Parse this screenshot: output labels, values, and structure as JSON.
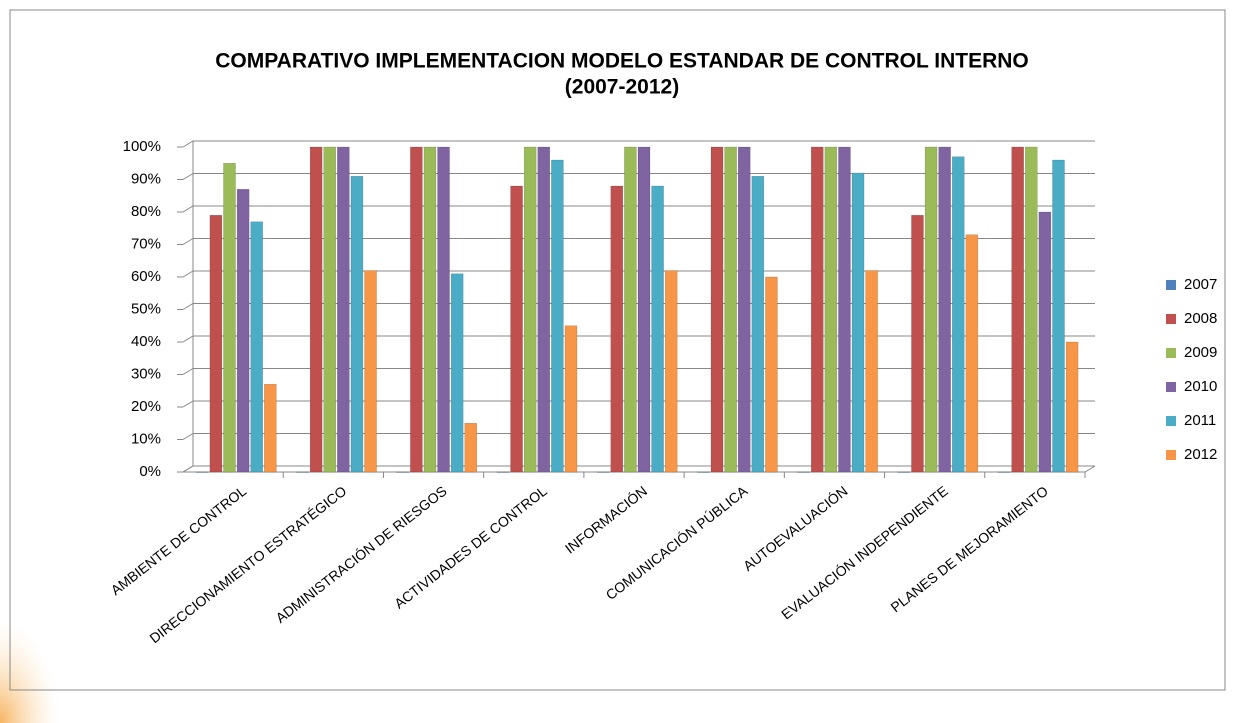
{
  "chart_data": {
    "type": "bar",
    "title": "COMPARATIVO  IMPLEMENTACION MODELO ESTANDAR  DE CONTROL INTERNO",
    "subtitle": "(2007-2012)",
    "categories": [
      "AMBIENTE DE CONTROL",
      "DIRECCIONAMIENTO ESTRATÉGICO",
      "ADMINISTRACIÓN DE RIESGOS",
      "ACTIVIDADES DE CONTROL",
      "INFORMACIÓN",
      "COMUNICACIÓN PÚBLICA",
      "AUTOEVALUACIÓN",
      "EVALUACIÓN INDEPENDIENTE",
      "PLANES DE MEJORAMIENTO"
    ],
    "series": [
      {
        "name": "2007",
        "color": "#4f81bd",
        "values": [
          0,
          0,
          0,
          0,
          0,
          0,
          0,
          0,
          0
        ]
      },
      {
        "name": "2008",
        "color": "#c0504d",
        "values": [
          79,
          100,
          100,
          88,
          88,
          100,
          100,
          79,
          100
        ]
      },
      {
        "name": "2009",
        "color": "#9bbb59",
        "values": [
          95,
          100,
          100,
          100,
          100,
          100,
          100,
          100,
          100
        ]
      },
      {
        "name": "2010",
        "color": "#8064a2",
        "values": [
          87,
          100,
          100,
          100,
          100,
          100,
          100,
          100,
          80
        ]
      },
      {
        "name": "2011",
        "color": "#4bacc6",
        "values": [
          77,
          91,
          61,
          96,
          88,
          91,
          92,
          97,
          96
        ]
      },
      {
        "name": "2012",
        "color": "#f79646",
        "values": [
          27,
          62,
          15,
          45,
          62,
          60,
          62,
          73,
          40
        ]
      }
    ],
    "ylim": [
      0,
      100
    ],
    "yticks": [
      {
        "value": 0,
        "label": "0%"
      },
      {
        "value": 10,
        "label": "10%"
      },
      {
        "value": 20,
        "label": "20%"
      },
      {
        "value": 30,
        "label": "30%"
      },
      {
        "value": 40,
        "label": "40%"
      },
      {
        "value": 50,
        "label": "50%"
      },
      {
        "value": 60,
        "label": "60%"
      },
      {
        "value": 70,
        "label": "70%"
      },
      {
        "value": 80,
        "label": "80%"
      },
      {
        "value": 90,
        "label": "90%"
      },
      {
        "value": 100,
        "label": "100%"
      }
    ],
    "grid": true,
    "legend": "right"
  }
}
